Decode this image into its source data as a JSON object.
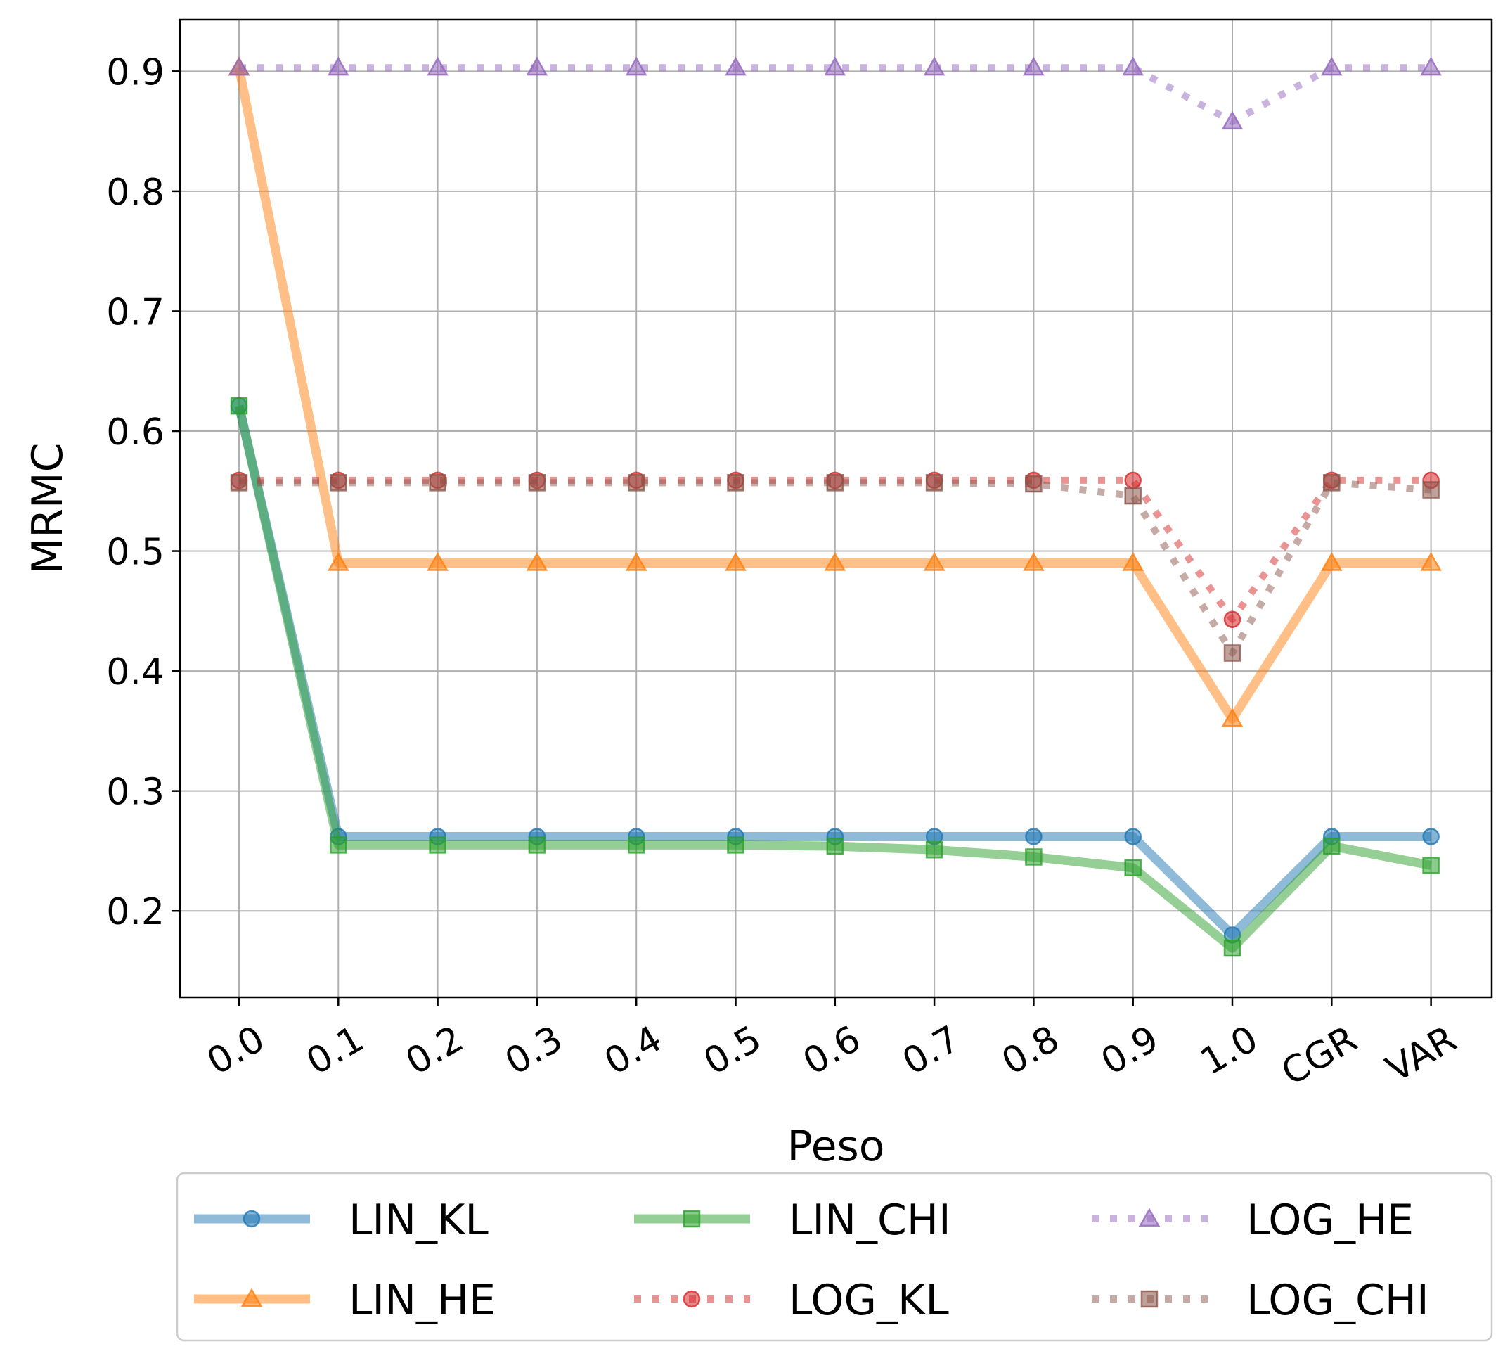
{
  "chart_data": {
    "type": "line",
    "title": "",
    "xlabel": "Peso",
    "ylabel": "MRMC",
    "categories": [
      "0.0",
      "0.1",
      "0.2",
      "0.3",
      "0.4",
      "0.5",
      "0.6",
      "0.7",
      "0.8",
      "0.9",
      "1.0",
      "CGR",
      "VAR"
    ],
    "ylim": [
      0.128,
      0.943
    ],
    "yticks": [
      "0.2",
      "0.3",
      "0.4",
      "0.5",
      "0.6",
      "0.7",
      "0.8",
      "0.9"
    ],
    "grid": true,
    "legend_position": "below plot",
    "legend_columns": 3,
    "series": [
      {
        "name": "LIN_KL",
        "color": "#1f77b4",
        "style": "solid",
        "marker": "circle",
        "values": [
          0.621,
          0.262,
          0.262,
          0.262,
          0.262,
          0.262,
          0.262,
          0.262,
          0.262,
          0.262,
          0.18,
          0.262,
          0.262
        ]
      },
      {
        "name": "LIN_HE",
        "color": "#ff7f0e",
        "style": "solid",
        "marker": "triangle",
        "values": [
          0.903,
          0.49,
          0.49,
          0.49,
          0.49,
          0.49,
          0.49,
          0.49,
          0.49,
          0.49,
          0.36,
          0.49,
          0.49
        ]
      },
      {
        "name": "LIN_CHI",
        "color": "#2ca02c",
        "style": "solid",
        "marker": "square",
        "values": [
          0.621,
          0.255,
          0.255,
          0.255,
          0.255,
          0.255,
          0.254,
          0.251,
          0.245,
          0.236,
          0.169,
          0.254,
          0.238
        ]
      },
      {
        "name": "LOG_KL",
        "color": "#d62728",
        "style": "dotted",
        "marker": "circle",
        "values": [
          0.559,
          0.559,
          0.559,
          0.559,
          0.559,
          0.559,
          0.559,
          0.559,
          0.559,
          0.559,
          0.443,
          0.559,
          0.559
        ]
      },
      {
        "name": "LOG_HE",
        "color": "#9467bd",
        "style": "dotted",
        "marker": "triangle",
        "values": [
          0.903,
          0.903,
          0.903,
          0.903,
          0.903,
          0.903,
          0.903,
          0.903,
          0.903,
          0.903,
          0.858,
          0.903,
          0.903
        ]
      },
      {
        "name": "LOG_CHI",
        "color": "#8c564b",
        "style": "dotted",
        "marker": "square",
        "values": [
          0.557,
          0.557,
          0.557,
          0.557,
          0.557,
          0.557,
          0.557,
          0.557,
          0.556,
          0.546,
          0.415,
          0.557,
          0.551
        ]
      }
    ]
  }
}
